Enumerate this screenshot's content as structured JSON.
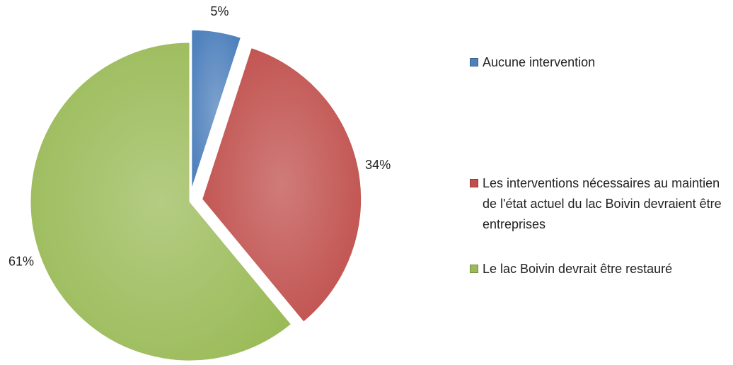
{
  "chart_data": {
    "type": "pie",
    "categories": [
      "Aucune intervention",
      "Les interventions nécessaires au maintien de l'état actuel du lac Boivin devraient être entreprises",
      "Le lac Boivin devrait être restauré"
    ],
    "values": [
      5,
      34,
      61
    ],
    "value_labels": [
      "5%",
      "34%",
      "61%"
    ],
    "colors": [
      "#4f81bd",
      "#c0504d",
      "#9bbb59"
    ],
    "legend": "right"
  }
}
